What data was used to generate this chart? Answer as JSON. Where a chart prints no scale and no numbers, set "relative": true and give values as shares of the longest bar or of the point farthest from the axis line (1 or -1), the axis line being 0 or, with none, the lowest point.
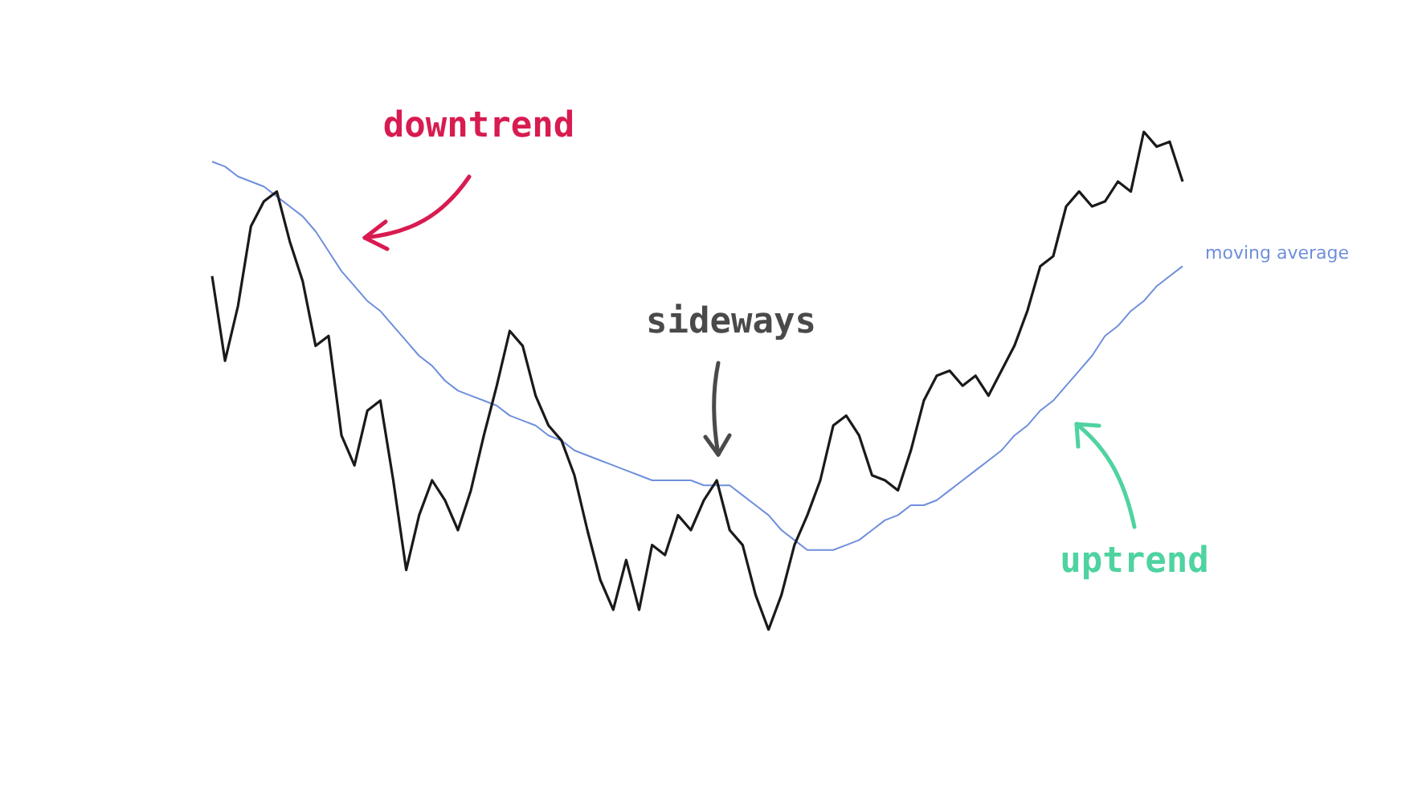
{
  "chart_data": {
    "type": "line",
    "relative": true,
    "legend": false,
    "marker": "none",
    "categories": [
      null,
      null,
      null,
      null,
      null,
      null,
      null,
      null,
      null,
      null,
      null,
      null,
      null,
      null,
      null,
      null,
      null,
      null,
      null,
      null,
      null,
      null,
      null,
      null,
      null,
      null,
      null,
      null,
      null,
      null,
      null,
      null,
      null,
      null,
      null,
      null,
      null,
      null,
      null,
      null,
      null,
      null,
      null,
      null,
      null,
      null,
      null,
      null,
      null,
      null,
      null,
      null,
      null,
      null,
      null,
      null,
      null,
      null,
      null,
      null,
      null,
      null,
      null,
      null,
      null,
      null,
      null,
      null,
      null,
      null,
      null,
      null,
      null,
      null,
      null,
      null
    ],
    "series": [
      {
        "color": "#1a1a1a",
        "values": [
          0.71,
          0.54,
          0.65,
          0.81,
          0.86,
          0.88,
          0.78,
          0.7,
          0.57,
          0.59,
          0.39,
          0.33,
          0.44,
          0.46,
          0.3,
          0.12,
          0.23,
          0.3,
          0.26,
          0.2,
          0.28,
          0.39,
          0.49,
          0.6,
          0.57,
          0.47,
          0.41,
          0.38,
          0.31,
          0.2,
          0.1,
          0.04,
          0.14,
          0.04,
          0.17,
          0.15,
          0.23,
          0.2,
          0.26,
          0.3,
          0.2,
          0.17,
          0.07,
          0.0,
          0.07,
          0.17,
          0.23,
          0.3,
          0.41,
          0.43,
          0.39,
          0.31,
          0.3,
          0.28,
          0.36,
          0.46,
          0.51,
          0.52,
          0.49,
          0.51,
          0.47,
          0.52,
          0.57,
          0.64,
          0.73,
          0.75,
          0.85,
          0.88,
          0.85,
          0.86,
          0.9,
          0.88,
          1.0,
          0.97,
          0.98,
          0.9
        ]
      },
      {
        "name": "moving average",
        "color": "#6f8fdc",
        "values": [
          0.94,
          0.93,
          0.91,
          0.9,
          0.89,
          0.87,
          0.85,
          0.83,
          0.8,
          0.76,
          0.72,
          0.69,
          0.66,
          0.64,
          0.61,
          0.58,
          0.55,
          0.53,
          0.5,
          0.48,
          0.47,
          0.46,
          0.45,
          0.43,
          0.42,
          0.41,
          0.39,
          0.38,
          0.36,
          0.35,
          0.34,
          0.33,
          0.32,
          0.31,
          0.3,
          0.3,
          0.3,
          0.3,
          0.29,
          0.29,
          0.29,
          0.27,
          0.25,
          0.23,
          0.2,
          0.18,
          0.16,
          0.16,
          0.16,
          0.17,
          0.18,
          0.2,
          0.22,
          0.23,
          0.25,
          0.25,
          0.26,
          0.28,
          0.3,
          0.32,
          0.34,
          0.36,
          0.39,
          0.41,
          0.44,
          0.46,
          0.49,
          0.52,
          0.55,
          0.59,
          0.61,
          0.64,
          0.66,
          0.69,
          0.71,
          0.73
        ]
      }
    ],
    "annotations": [
      "downtrend",
      "sideways",
      "uptrend"
    ]
  }
}
